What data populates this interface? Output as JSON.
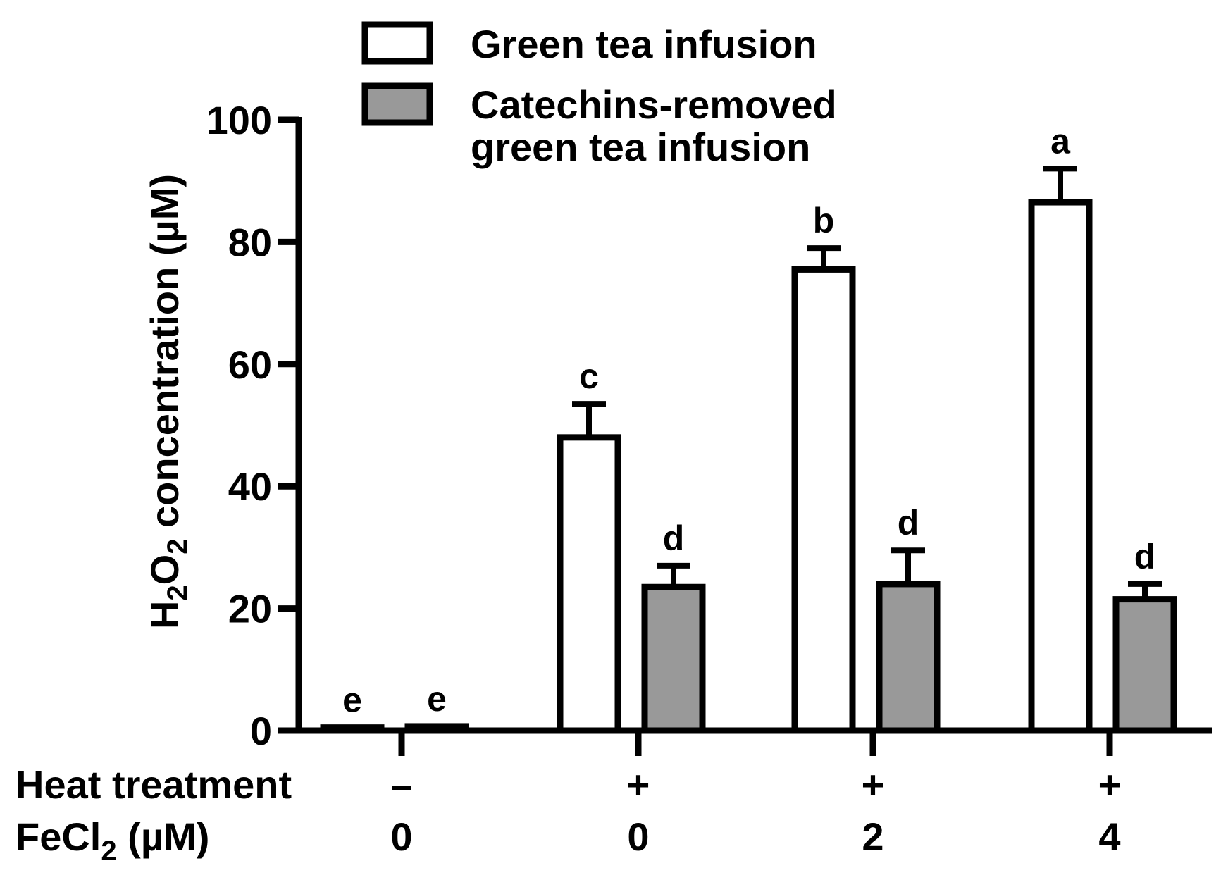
{
  "chart_data": {
    "type": "bar",
    "ylabel": {
      "main": "H",
      "sub1": "2",
      "mid": "O",
      "sub2": "2",
      "rest": " concentration (µM)"
    },
    "ylim": [
      0,
      100
    ],
    "yticks": [
      0,
      20,
      40,
      60,
      80,
      100
    ],
    "grid": false,
    "legend_placement": "top",
    "series": [
      {
        "name": "Green tea infusion",
        "color": "#ffffff",
        "values": [
          0.5,
          48,
          75.5,
          86.5
        ],
        "errors": [
          0,
          5.5,
          3.5,
          5.5
        ],
        "letters": [
          "e",
          "c",
          "b",
          "a"
        ]
      },
      {
        "name_line1": "Catechins-removed",
        "name_line2": "green tea infusion",
        "color": "#999999",
        "values": [
          0.7,
          23.5,
          24,
          21.5
        ],
        "errors": [
          0,
          3.5,
          5.5,
          2.5
        ],
        "letters": [
          "e",
          "d",
          "d",
          "d"
        ]
      }
    ],
    "row_labels": {
      "heat": "Heat treatment",
      "fecl2_main": "FeCl",
      "fecl2_sub": "2",
      "fecl2_rest": " (µM)"
    },
    "groups": [
      {
        "heat": "–",
        "fecl2": "0"
      },
      {
        "heat": "+",
        "fecl2": "0"
      },
      {
        "heat": "+",
        "fecl2": "2"
      },
      {
        "heat": "+",
        "fecl2": "4"
      }
    ]
  }
}
